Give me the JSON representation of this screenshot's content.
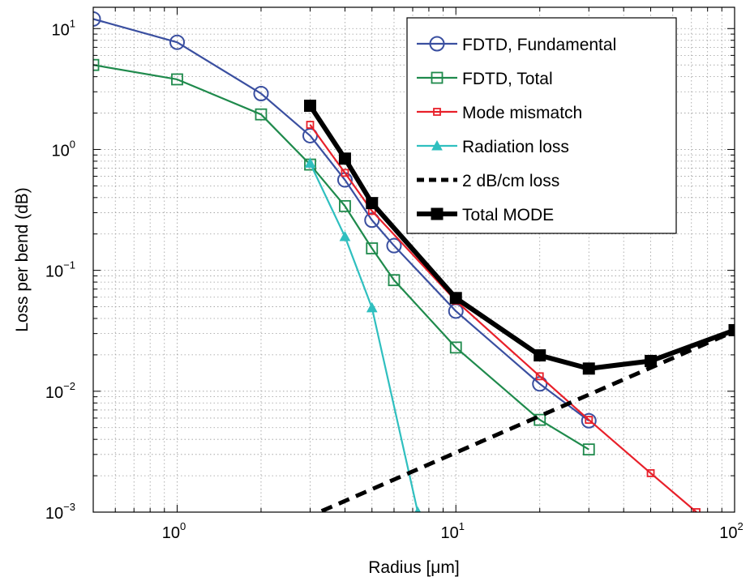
{
  "chart_data": {
    "type": "line",
    "title": "",
    "xlabel": "Radius [μm]",
    "ylabel": "Loss per bend (dB)",
    "xscale": "log",
    "yscale": "log",
    "xlim": [
      0.5,
      100
    ],
    "ylim": [
      0.001,
      15
    ],
    "grid": true,
    "legend_position": "top-right",
    "x_ticks": [
      {
        "value": 1,
        "base": "10",
        "exp": "0"
      },
      {
        "value": 10,
        "base": "10",
        "exp": "1"
      },
      {
        "value": 100,
        "base": "10",
        "exp": "2"
      }
    ],
    "y_ticks": [
      {
        "value": 10,
        "base": "10",
        "exp": "1"
      },
      {
        "value": 1,
        "base": "10",
        "exp": "0"
      },
      {
        "value": 0.1,
        "base": "10",
        "exp": "−1"
      },
      {
        "value": 0.01,
        "base": "10",
        "exp": "−2"
      },
      {
        "value": 0.001,
        "base": "10",
        "exp": "−3"
      }
    ],
    "series": [
      {
        "name": "FDTD, Fundamental",
        "color": "#3a4fa0",
        "marker": "circle",
        "line": "solid",
        "x": [
          0.5,
          1,
          2,
          3,
          4,
          5,
          6,
          10,
          20,
          30
        ],
        "y": [
          12,
          7.7,
          2.9,
          1.3,
          0.56,
          0.26,
          0.16,
          0.046,
          0.0115,
          0.0057
        ]
      },
      {
        "name": "FDTD, Total",
        "color": "#1f8a4c",
        "marker": "square",
        "line": "solid",
        "x": [
          0.5,
          1,
          2,
          3,
          4,
          5,
          6,
          10,
          20,
          30
        ],
        "y": [
          5.0,
          3.8,
          1.95,
          0.75,
          0.34,
          0.152,
          0.083,
          0.023,
          0.0058,
          0.0033
        ]
      },
      {
        "name": "Mode mismatch",
        "color": "#e8202a",
        "marker": "small-square",
        "line": "solid",
        "x": [
          3,
          4,
          5,
          10,
          20,
          30,
          50,
          73
        ],
        "y": [
          1.6,
          0.64,
          0.31,
          0.056,
          0.0133,
          0.0058,
          0.0021,
          0.001
        ]
      },
      {
        "name": "Radiation loss",
        "color": "#2fbfbf",
        "marker": "triangle",
        "line": "solid",
        "x": [
          3,
          4,
          5,
          7.3
        ],
        "y": [
          0.77,
          0.19,
          0.049,
          0.001
        ]
      },
      {
        "name": "2 dB/cm loss",
        "color": "#000000",
        "marker": "none",
        "line": "dashed",
        "x": [
          3.3,
          100
        ],
        "y": [
          0.00102,
          0.0314
        ]
      },
      {
        "name": "Total MODE",
        "color": "#000000",
        "marker": "filled-square",
        "line": "thick",
        "x": [
          3,
          4,
          5,
          10,
          20,
          30,
          50,
          100
        ],
        "y": [
          2.3,
          0.84,
          0.36,
          0.059,
          0.0198,
          0.0154,
          0.0178,
          0.032
        ]
      }
    ]
  }
}
